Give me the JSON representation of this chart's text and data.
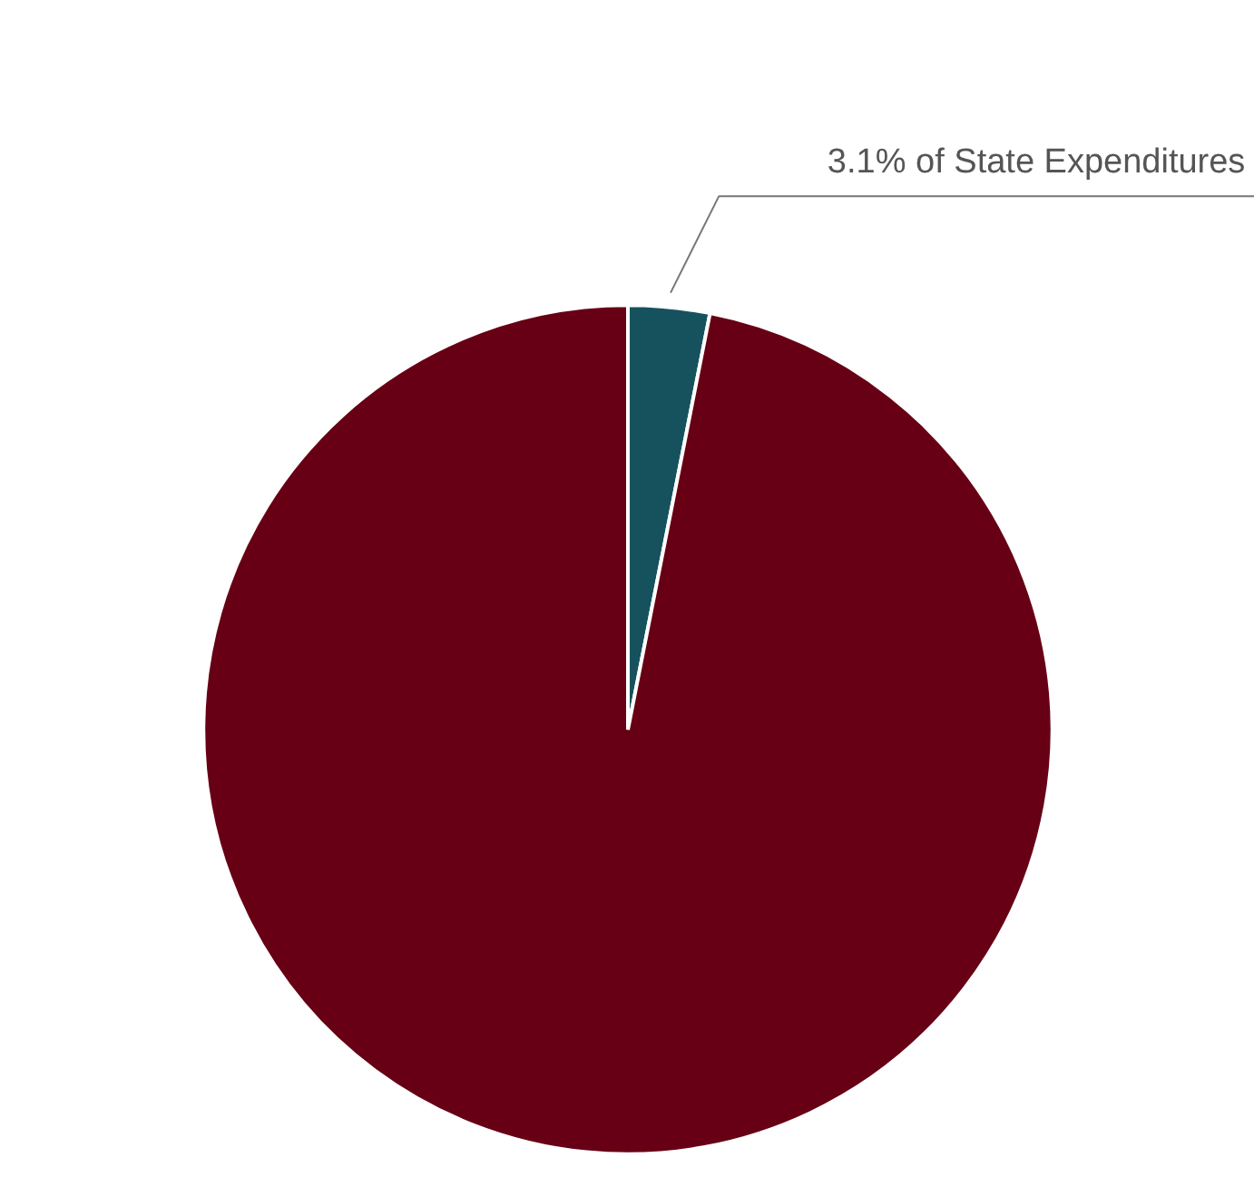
{
  "chart_data": {
    "type": "pie",
    "categories": [
      null,
      null
    ],
    "values": [
      3.1,
      96.9
    ],
    "colors": [
      "#16525e",
      "#670014"
    ],
    "value_labels": [
      "3.1% of State Expenditures",
      null
    ]
  }
}
